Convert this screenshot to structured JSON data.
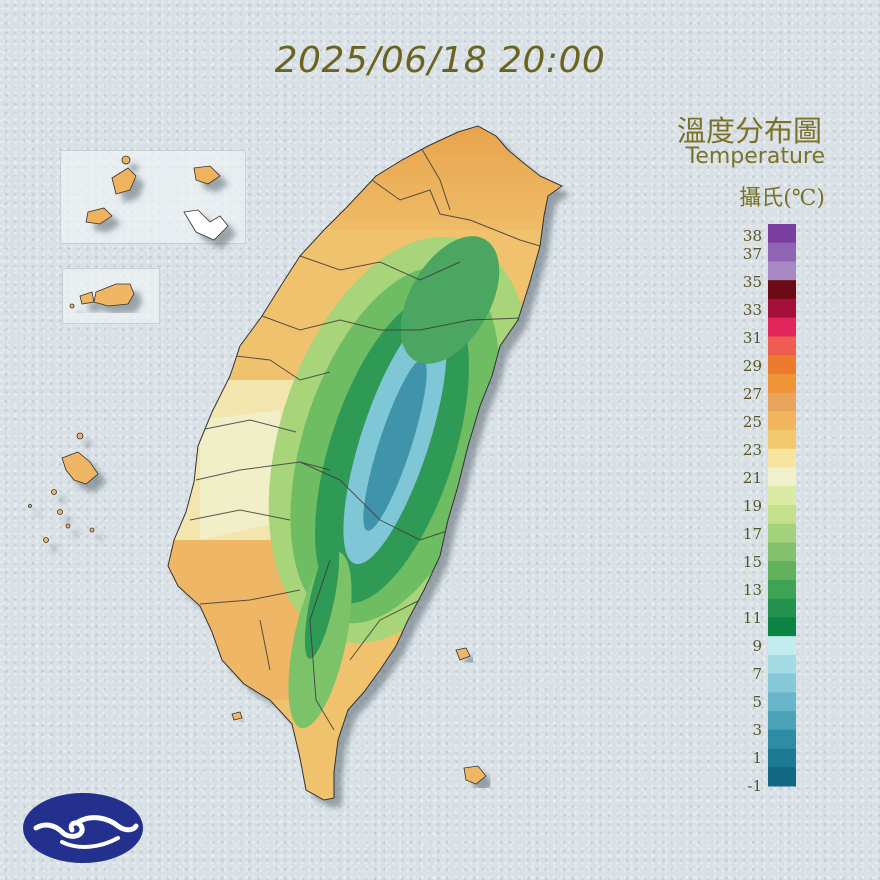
{
  "timestamp": "2025/06/18 20:00",
  "title": {
    "chinese": "溫度分布圖",
    "english": "Temperature",
    "unit": "攝氏(℃)"
  },
  "legend": {
    "labels": [
      "38",
      "37",
      "35",
      "33",
      "31",
      "29",
      "27",
      "25",
      "23",
      "21",
      "19",
      "17",
      "15",
      "13",
      "11",
      "9",
      "7",
      "5",
      "3",
      "1",
      "-1"
    ],
    "colors": [
      "#7a3da0",
      "#9064b4",
      "#a888c2",
      "#6e0a14",
      "#a5103a",
      "#e2255a",
      "#ef5c52",
      "#ec7a2e",
      "#ef9535",
      "#eba45c",
      "#f1b55d",
      "#f3c96e",
      "#f6e4a0",
      "#f1f0cc",
      "#dbeaa2",
      "#c4e08a",
      "#a4d27c",
      "#84c16c",
      "#62b25d",
      "#3ea455",
      "#23924e",
      "#0c8342",
      "#c2ecf0",
      "#a4dbe4",
      "#86c8d8",
      "#69b5ca",
      "#4aa1b8",
      "#2e8ca6",
      "#1d7a94",
      "#126882"
    ]
  },
  "icons": {
    "logo": "cwa-cloud-logo"
  }
}
